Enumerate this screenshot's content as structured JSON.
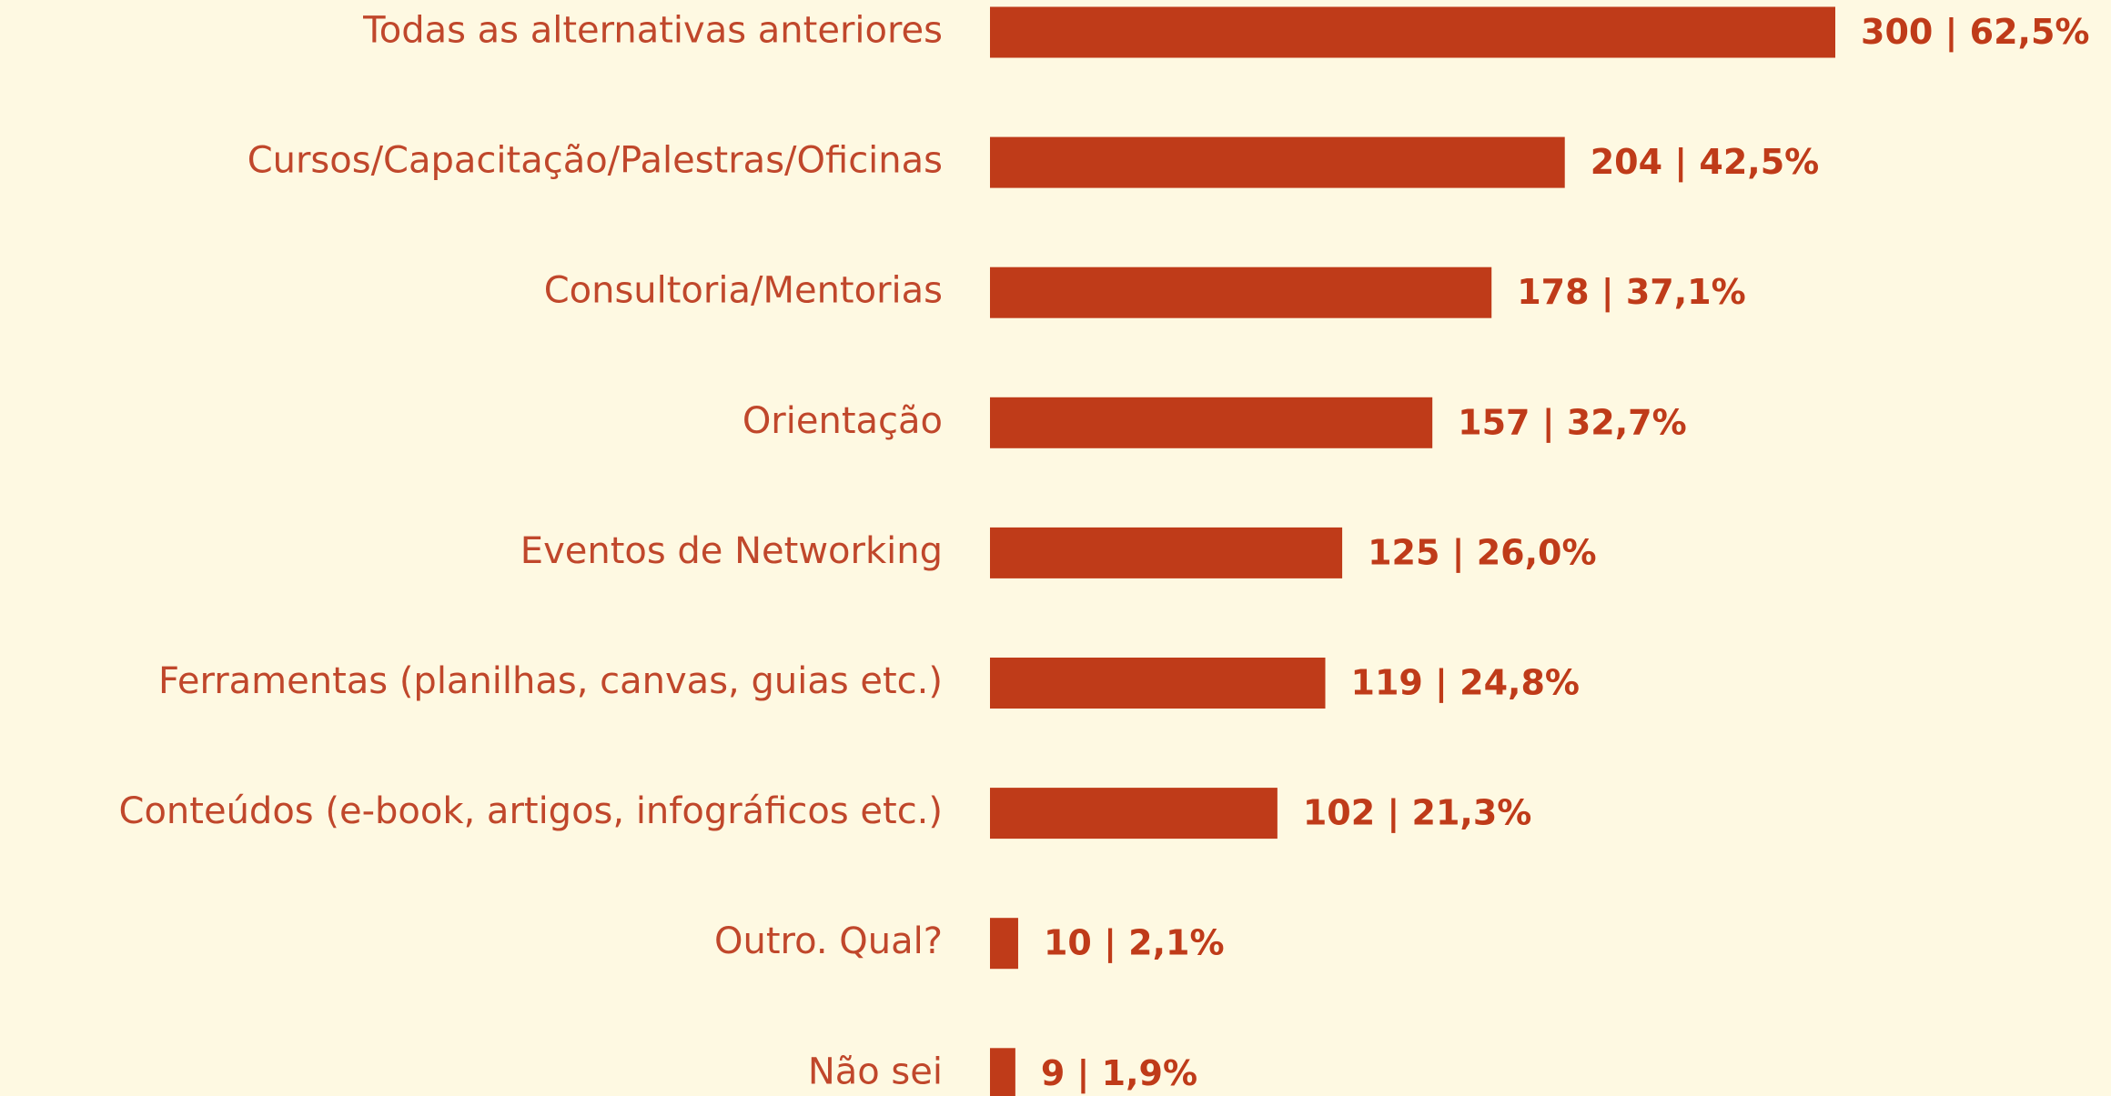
{
  "chart_data": {
    "type": "barh",
    "categories": [
      "Todas as alternativas anteriores",
      "Cursos/Capacitação/Palestras/Oficinas",
      "Consultoria/Mentorias",
      "Orientação",
      "Eventos de Networking",
      "Ferramentas (planilhas, canvas, guias etc.)",
      "Conteúdos (e-book, artigos, infográficos etc.)",
      "Outro. Qual?",
      "Não sei"
    ],
    "values": [
      300,
      204,
      178,
      157,
      125,
      119,
      102,
      10,
      9
    ],
    "value_labels": [
      "300 | 62,5%",
      "204 | 42,5%",
      "178 | 37,1%",
      "157 | 32,7%",
      "125 | 26,0%",
      "119 | 24,8%",
      "102 | 21,3%",
      "10 | 2,1%",
      "9 | 1,9%"
    ],
    "color": "#bf3b19"
  }
}
